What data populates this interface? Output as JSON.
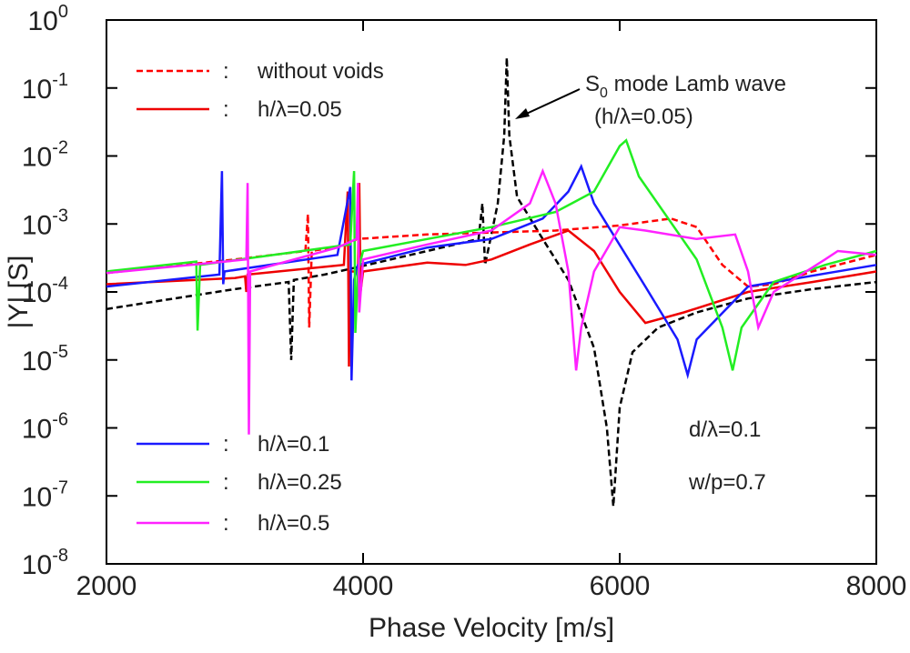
{
  "chart_data": {
    "type": "line",
    "xlabel": "Phase Velocity [m/s]",
    "ylabel": "|Y| [S]",
    "xlim": [
      2000,
      8000
    ],
    "xticks": [
      2000,
      4000,
      6000,
      8000
    ],
    "ylim": [
      1e-08,
      1
    ],
    "log_y": true,
    "yticks": [
      {
        "value": 1,
        "label": "10",
        "exponent": "0"
      },
      {
        "value": 0.1,
        "label": "10",
        "exponent": "-1"
      },
      {
        "value": 0.01,
        "label": "10",
        "exponent": "-2"
      },
      {
        "value": 0.001,
        "label": "10",
        "exponent": "-3"
      },
      {
        "value": 0.0001,
        "label": "10",
        "exponent": "-4"
      },
      {
        "value": 1e-05,
        "label": "10",
        "exponent": "-5"
      },
      {
        "value": 1e-06,
        "label": "10",
        "exponent": "-6"
      },
      {
        "value": 1e-07,
        "label": "10",
        "exponent": "-7"
      },
      {
        "value": 1e-08,
        "label": "10",
        "exponent": "-8"
      }
    ],
    "legend_separator": ":",
    "annotations": [
      {
        "text": "S",
        "sub": "0",
        "rest": " mode Lamb wave"
      },
      {
        "text": "(h/λ=0.05)"
      },
      {
        "text": "d/λ=0.1"
      },
      {
        "text": "w/p=0.7"
      }
    ],
    "series": [
      {
        "color": "#000000",
        "dash": true,
        "x": [
          2000,
          3000,
          3420,
          3440,
          3460,
          3700,
          3950,
          4500,
          4900,
          4930,
          4950,
          5000,
          5050,
          5100,
          5120,
          5140,
          5200,
          5400,
          5600,
          5800,
          5900,
          5950,
          6000,
          6100,
          6300,
          6600,
          7000,
          7500,
          8000
        ],
        "values": [
          5.6e-05,
          0.00011,
          0.00014,
          1e-05,
          0.00015,
          0.00018,
          0.00023,
          0.0004,
          0.0006,
          0.002,
          0.00025,
          0.0007,
          0.002,
          0.02,
          0.28,
          0.02,
          0.0025,
          0.0006,
          0.00015,
          1.5e-05,
          1e-06,
          7e-08,
          2e-06,
          1.3e-05,
          3e-05,
          5e-05,
          8e-05,
          0.00011,
          0.00014
        ]
      },
      {
        "name": "without voids",
        "color": "#ff0000",
        "dash": true,
        "x": [
          2000,
          3000,
          3550,
          3570,
          3580,
          3600,
          3900,
          3950,
          4500,
          5500,
          6000,
          6400,
          6600,
          6800,
          7000,
          7200,
          7500,
          8000
        ],
        "values": [
          0.00019,
          0.0003,
          0.0004,
          0.0014,
          3e-05,
          0.0004,
          0.0005,
          0.0006,
          0.0007,
          0.0008,
          0.00095,
          0.0012,
          0.0009,
          0.00025,
          0.00012,
          0.00013,
          0.0002,
          0.00035
        ]
      },
      {
        "name": "h/λ=0.05",
        "color": "#ee0000",
        "dash": false,
        "x": [
          2000,
          3000,
          3080,
          3090,
          3100,
          3850,
          3880,
          3890,
          3900,
          3960,
          3970,
          3980,
          4000,
          4500,
          4800,
          5000,
          5300,
          5600,
          5800,
          6000,
          6200,
          6500,
          7000,
          7500,
          8000
        ],
        "values": [
          0.00013,
          0.00016,
          0.00017,
          0.0001,
          0.00018,
          0.00025,
          0.003,
          8e-06,
          0.0002,
          0.0002,
          0.004,
          0.0001,
          0.0002,
          0.00027,
          0.00025,
          0.0003,
          0.0005,
          0.0008,
          0.0004,
          0.0001,
          3.5e-05,
          5e-05,
          0.0001,
          0.00014,
          0.0002
        ]
      },
      {
        "name": "h/λ=0.1",
        "color": "#1a1aff",
        "dash": false,
        "x": [
          2000,
          2880,
          2900,
          2910,
          2920,
          3800,
          3900,
          3910,
          3930,
          3960,
          4500,
          5000,
          5400,
          5600,
          5700,
          5800,
          6200,
          6450,
          6530,
          6600,
          7000,
          8000
        ],
        "values": [
          0.00012,
          0.00018,
          0.006,
          0.00013,
          0.0002,
          0.00035,
          0.0035,
          5e-06,
          0.00015,
          0.00025,
          0.00045,
          0.0006,
          0.0012,
          0.003,
          0.007,
          0.002,
          0.00012,
          2e-05,
          6e-06,
          2e-05,
          0.00012,
          0.00025
        ]
      },
      {
        "name": "h/λ=0.25",
        "color": "#22ee22",
        "dash": false,
        "x": [
          2000,
          2700,
          2710,
          2730,
          3900,
          3930,
          3940,
          3960,
          4000,
          4500,
          5000,
          5500,
          5800,
          6000,
          6050,
          6150,
          6600,
          6800,
          6880,
          6950,
          7200,
          7600,
          8000
        ],
        "values": [
          0.0002,
          0.00028,
          2.7e-05,
          0.00025,
          0.0005,
          0.006,
          2.5e-05,
          0.0002,
          0.0004,
          0.0006,
          0.0009,
          0.0015,
          0.003,
          0.014,
          0.017,
          0.005,
          0.0003,
          3e-05,
          7e-06,
          3e-05,
          0.00014,
          0.00025,
          0.0004
        ]
      },
      {
        "name": "h/λ=0.5",
        "color": "#ff22ff",
        "dash": false,
        "x": [
          2000,
          3090,
          3100,
          3110,
          3120,
          3800,
          3950,
          3960,
          3970,
          4000,
          4500,
          5000,
          5300,
          5400,
          5500,
          5600,
          5660,
          5700,
          5800,
          6000,
          6200,
          6600,
          6900,
          7000,
          7080,
          7200,
          7600,
          7700,
          8000
        ],
        "values": [
          0.00019,
          0.0003,
          0.004,
          8e-07,
          0.0002,
          0.00045,
          0.0006,
          0.004,
          5e-05,
          0.0003,
          0.0005,
          0.0008,
          0.002,
          0.006,
          0.002,
          0.0002,
          7e-06,
          3e-05,
          0.0002,
          0.0009,
          0.0008,
          0.0006,
          0.0007,
          0.0002,
          3e-05,
          0.0001,
          0.0003,
          0.0004,
          0.00035
        ]
      }
    ]
  }
}
